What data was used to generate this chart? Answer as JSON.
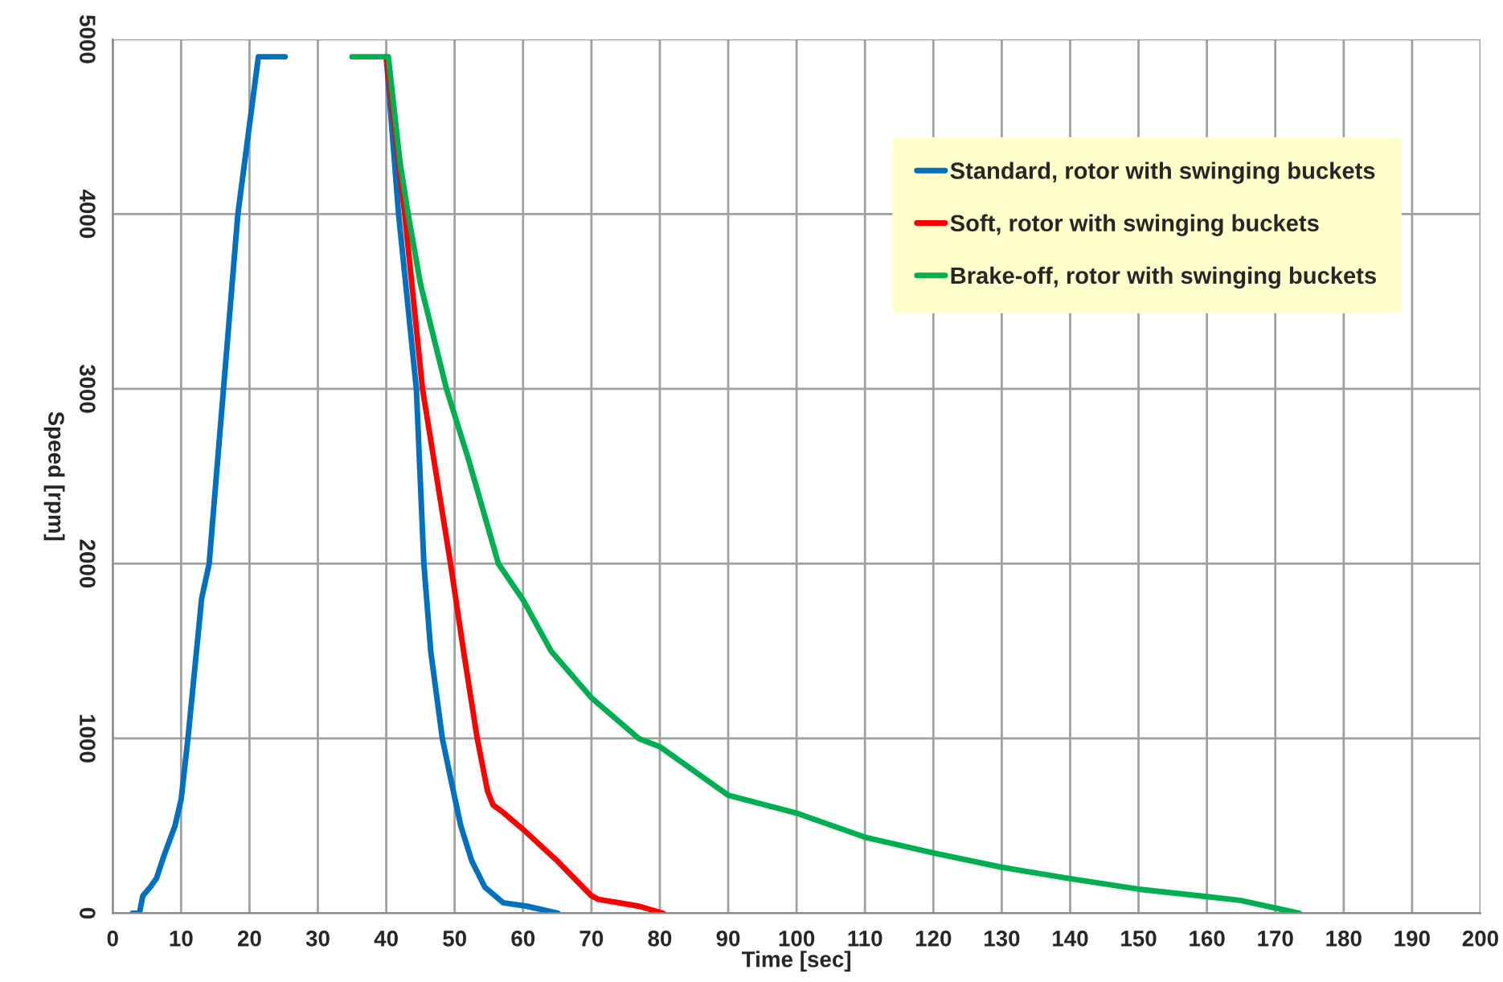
{
  "chart_data": {
    "type": "line",
    "xlabel": "Time [sec]",
    "ylabel": "Speed [rpm]",
    "xlim": [
      0,
      200
    ],
    "xticks": [
      0,
      10,
      20,
      30,
      40,
      50,
      60,
      70,
      80,
      90,
      100,
      110,
      120,
      130,
      140,
      150,
      160,
      170,
      180,
      190,
      200
    ],
    "ylim": [
      0,
      5000
    ],
    "yticks": [
      0,
      1000,
      2000,
      3000,
      4000,
      5000
    ],
    "grid": true,
    "legend": "top right",
    "marker": "none",
    "line_style": "solid",
    "series": [
      {
        "name": "Standard, rotor with swinging buckets",
        "color": "#0070c0",
        "x": [
          2.9,
          3.9,
          4.4,
          5.5,
          6.4,
          7.5,
          9.1,
          10,
          11,
          12,
          13,
          14.1,
          16.2,
          18.3,
          21.3,
          25.2,
          30,
          40,
          41.8,
          44.4,
          45.5,
          46.5,
          48.2,
          49.8,
          50.9,
          52.5,
          54.4,
          57.1,
          60.6,
          65.1
        ],
        "values": [
          0,
          0,
          100,
          150,
          200,
          330,
          500,
          650,
          1000,
          1400,
          1800,
          2000,
          3000,
          4000,
          4900,
          4900,
          null,
          4900,
          4000,
          3000,
          2000,
          1500,
          1000,
          700,
          500,
          300,
          150,
          60,
          40,
          0
        ]
      },
      {
        "name": "Soft, rotor with swinging buckets",
        "color": "#ff0000",
        "x": [
          40,
          42.7,
          45.3,
          49.4,
          51.3,
          53.3,
          54.8,
          55.6,
          57,
          60,
          65,
          70,
          71,
          77,
          80.5
        ],
        "values": [
          4900,
          4000,
          3000,
          2000,
          1500,
          1000,
          700,
          620,
          580,
          480,
          300,
          100,
          80,
          40,
          0
        ]
      },
      {
        "name": "Brake-off, rotor with swinging buckets",
        "color": "#00b050",
        "x": [
          35,
          40.3,
          42,
          43.2,
          45,
          48.8,
          52,
          56.4,
          60,
          64.1,
          70,
          76.9,
          80,
          90,
          100,
          110,
          120,
          130,
          140,
          150,
          160,
          165,
          173.5
        ],
        "values": [
          4900,
          4900,
          4300,
          4000,
          3600,
          3000,
          2600,
          2000,
          1793,
          1500,
          1233,
          1000,
          953,
          675,
          573,
          435,
          345,
          263,
          198,
          138,
          95,
          73,
          0
        ]
      }
    ]
  }
}
